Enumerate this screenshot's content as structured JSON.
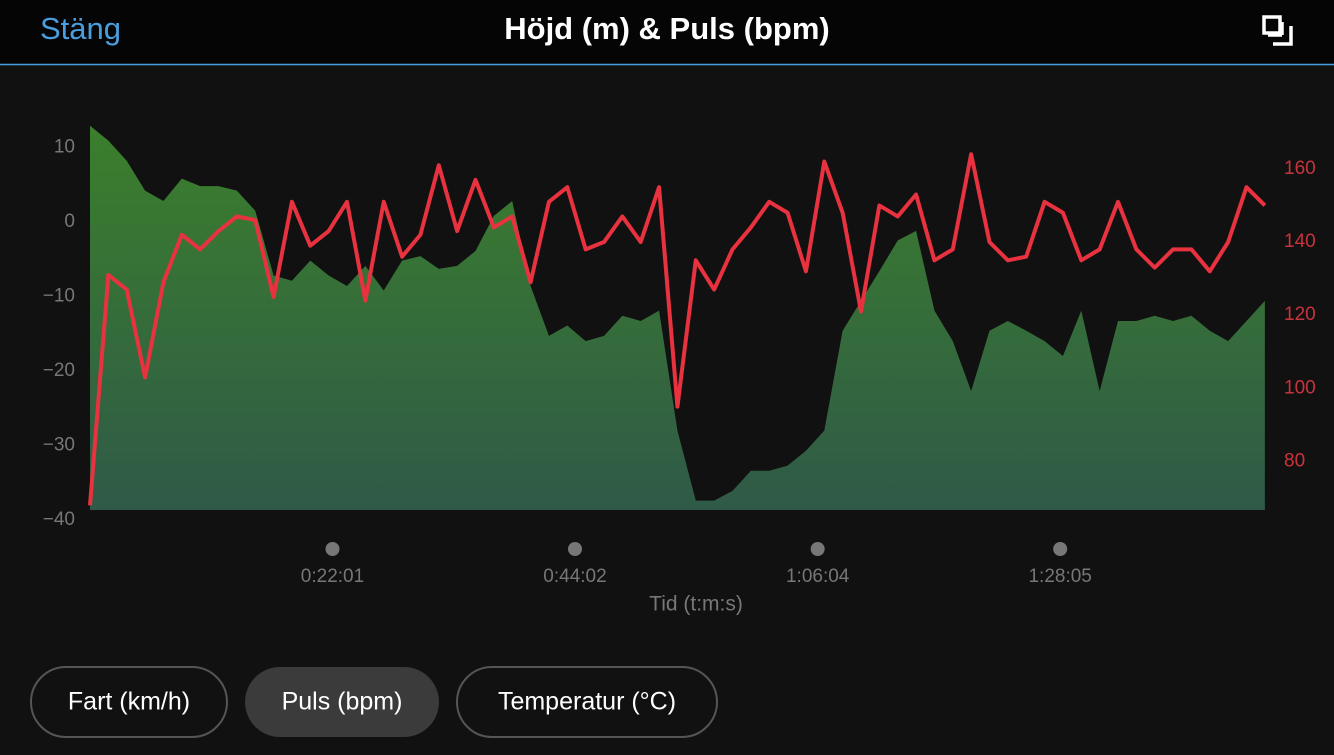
{
  "header": {
    "close": "Stäng"
  },
  "chart_data": {
    "type": "line",
    "title": "Höjd (m) & Puls (bpm)",
    "x_label": "Tid (t:m:s)",
    "x": [
      0,
      100,
      200,
      300,
      400,
      500,
      600,
      700,
      800,
      900,
      1000,
      1100,
      1200,
      1300,
      1400,
      1500,
      1600,
      1700,
      1800,
      1900,
      2000,
      2100,
      2200,
      2300,
      2400,
      2500,
      2600,
      2700,
      2800,
      2900,
      3000,
      3100,
      3200,
      3300,
      3400,
      3500,
      3600,
      3700,
      3800,
      3900,
      4000,
      4100,
      4200,
      4300,
      4400,
      4500,
      4600,
      4700,
      4800,
      4900,
      5000,
      5100,
      5200,
      5300,
      5400,
      5500,
      5600,
      5700,
      5800,
      5900,
      6000,
      6100,
      6200,
      6300,
      6400
    ],
    "xlim": [
      0,
      6428
    ],
    "xticks": [
      {
        "value": 1321,
        "label": "0:22:01"
      },
      {
        "value": 2642,
        "label": "0:44:02"
      },
      {
        "value": 3964,
        "label": "1:06:04"
      },
      {
        "value": 5285,
        "label": "1:28:05"
      }
    ],
    "ylim": [
      -40,
      13
    ],
    "yticks": [
      10,
      0,
      {
        "value": -10,
        "label": "−10"
      },
      {
        "value": -20,
        "label": "−20"
      },
      {
        "value": -30,
        "label": "−30"
      },
      {
        "value": -40,
        "label": "−40"
      }
    ],
    "y2lim": [
      64,
      172
    ],
    "y2ticks": [
      80,
      100,
      120,
      140,
      160
    ],
    "series": [
      {
        "kind": "area",
        "color": "#3b7f2c",
        "values": [
          12.9,
          10.9,
          8.2,
          4.2,
          2.8,
          5.8,
          4.8,
          4.8,
          4.2,
          1.5,
          -7.2,
          -7.9,
          -5.2,
          -7.2,
          -8.6,
          -5.9,
          -9.2,
          -5.2,
          -4.6,
          -6.3,
          -5.9,
          -3.9,
          0.8,
          2.8,
          -8.6,
          -15.3,
          -13.9,
          -16.0,
          -15.3,
          -12.6,
          -13.3,
          -11.9,
          -28.0,
          -37.4,
          -37.4,
          -36.1,
          -33.4,
          -33.4,
          -32.7,
          -30.7,
          -28.0,
          -14.6,
          -10.6,
          -6.6,
          -2.5,
          -1.2,
          -11.9,
          -16.0,
          -22.7,
          -14.6,
          -13.3,
          -14.6,
          -16.0,
          -18.0,
          -11.9,
          -22.7,
          -13.3,
          -13.3,
          -12.6,
          -13.3,
          -12.6,
          -14.6,
          -16.0,
          -13.3,
          -10.6
        ]
      },
      {
        "kind": "line",
        "axis": "y2",
        "color": "#e8323f",
        "values": [
          68,
          131,
          127,
          103,
          129,
          142,
          138,
          143,
          147,
          146,
          125,
          151,
          139,
          143,
          151,
          124,
          151,
          136,
          142,
          161,
          143,
          157,
          144,
          147,
          129,
          151,
          155,
          138,
          140,
          147,
          140,
          155,
          95,
          135,
          127,
          138,
          144,
          151,
          148,
          132,
          162,
          148,
          121,
          150,
          147,
          153,
          135,
          138,
          164,
          140,
          135,
          136,
          151,
          148,
          135,
          138,
          151,
          138,
          133,
          138,
          138,
          132,
          140,
          155,
          150
        ]
      }
    ]
  },
  "buttons": [
    {
      "label": "Fart (km/h)"
    },
    {
      "label": "Puls (bpm)",
      "selected": true
    },
    {
      "label": "Temperatur (°C)"
    }
  ]
}
